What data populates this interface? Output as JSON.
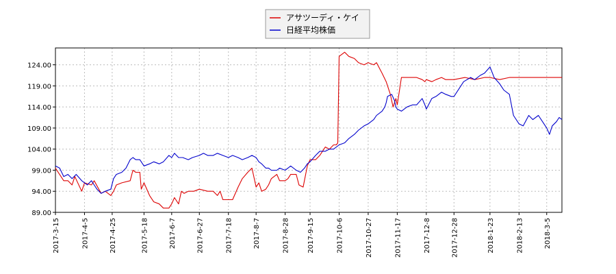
{
  "chart_data": {
    "type": "line",
    "title": "",
    "xlabel": "",
    "ylabel": "",
    "ylim": [
      89,
      128
    ],
    "yticks": [
      89,
      94,
      99,
      104,
      109,
      114,
      119,
      124
    ],
    "ytick_labels": [
      "89.00",
      "94.00",
      "99.00",
      "104.00",
      "109.00",
      "114.00",
      "119.00",
      "124.00"
    ],
    "xlim": [
      "2017-03-15",
      "2018-03-16"
    ],
    "xtick_labels": [
      "2017-3-15",
      "2017-4-5",
      "2017-4-25",
      "2017-5-18",
      "2017-6-7",
      "2017-6-27",
      "2017-7-18",
      "2017-8-7",
      "2017-8-28",
      "2017-9-15",
      "2017-10-6",
      "2017-10-27",
      "2017-11-17",
      "2017-12-8",
      "2017-12-28",
      "2018-1-23",
      "2018-2-13",
      "2018-3-5"
    ],
    "grid": true,
    "legend_position": "top-center",
    "series": [
      {
        "name": "アサツーディ・ケイ",
        "color": "#dd0000",
        "points": [
          [
            "2017-03-15",
            99.5
          ],
          [
            "2017-03-21",
            96.5
          ],
          [
            "2017-03-24",
            96.5
          ],
          [
            "2017-03-27",
            95.5
          ],
          [
            "2017-03-29",
            97.5
          ],
          [
            "2017-04-03",
            94.0
          ],
          [
            "2017-04-05",
            96.0
          ],
          [
            "2017-04-10",
            95.5
          ],
          [
            "2017-04-12",
            96.5
          ],
          [
            "2017-04-17",
            93.5
          ],
          [
            "2017-04-20",
            94.0
          ],
          [
            "2017-04-24",
            93.0
          ],
          [
            "2017-04-26",
            94.0
          ],
          [
            "2017-04-28",
            95.5
          ],
          [
            "2017-05-02",
            96.0
          ],
          [
            "2017-05-08",
            96.5
          ],
          [
            "2017-05-10",
            99.0
          ],
          [
            "2017-05-12",
            98.5
          ],
          [
            "2017-05-15",
            98.5
          ],
          [
            "2017-05-16",
            94.5
          ],
          [
            "2017-05-18",
            96.0
          ],
          [
            "2017-05-22",
            93.0
          ],
          [
            "2017-05-25",
            91.5
          ],
          [
            "2017-05-29",
            91.0
          ],
          [
            "2017-06-01",
            90.0
          ],
          [
            "2017-06-05",
            90.0
          ],
          [
            "2017-06-07",
            91.0
          ],
          [
            "2017-06-09",
            92.5
          ],
          [
            "2017-06-12",
            91.0
          ],
          [
            "2017-06-14",
            94.0
          ],
          [
            "2017-06-16",
            93.5
          ],
          [
            "2017-06-19",
            94.0
          ],
          [
            "2017-06-23",
            94.0
          ],
          [
            "2017-06-27",
            94.5
          ],
          [
            "2017-07-03",
            94.0
          ],
          [
            "2017-07-07",
            94.0
          ],
          [
            "2017-07-10",
            93.0
          ],
          [
            "2017-07-12",
            94.0
          ],
          [
            "2017-07-14",
            92.0
          ],
          [
            "2017-07-18",
            92.0
          ],
          [
            "2017-07-21",
            92.0
          ],
          [
            "2017-07-25",
            95.0
          ],
          [
            "2017-07-28",
            97.0
          ],
          [
            "2017-08-01",
            98.5
          ],
          [
            "2017-08-04",
            99.5
          ],
          [
            "2017-08-07",
            95.0
          ],
          [
            "2017-08-09",
            96.0
          ],
          [
            "2017-08-11",
            94.0
          ],
          [
            "2017-08-14",
            94.5
          ],
          [
            "2017-08-16",
            95.5
          ],
          [
            "2017-08-18",
            97.0
          ],
          [
            "2017-08-22",
            98.0
          ],
          [
            "2017-08-24",
            96.5
          ],
          [
            "2017-08-28",
            96.5
          ],
          [
            "2017-08-30",
            97.0
          ],
          [
            "2017-09-01",
            98.0
          ],
          [
            "2017-09-05",
            98.0
          ],
          [
            "2017-09-07",
            95.5
          ],
          [
            "2017-09-10",
            95.0
          ],
          [
            "2017-09-13",
            100.0
          ],
          [
            "2017-09-15",
            101.5
          ],
          [
            "2017-09-19",
            101.5
          ],
          [
            "2017-09-22",
            102.5
          ],
          [
            "2017-09-26",
            104.5
          ],
          [
            "2017-09-29",
            104.0
          ],
          [
            "2017-10-02",
            105.0
          ],
          [
            "2017-10-04",
            105.0
          ],
          [
            "2017-10-05",
            105.5
          ],
          [
            "2017-10-06",
            126.0
          ],
          [
            "2017-10-10",
            127.0
          ],
          [
            "2017-10-13",
            126.0
          ],
          [
            "2017-10-17",
            125.5
          ],
          [
            "2017-10-20",
            124.5
          ],
          [
            "2017-10-24",
            124.0
          ],
          [
            "2017-10-27",
            124.5
          ],
          [
            "2017-10-31",
            124.0
          ],
          [
            "2017-11-02",
            124.5
          ],
          [
            "2017-11-06",
            122.0
          ],
          [
            "2017-11-09",
            120.0
          ],
          [
            "2017-11-12",
            117.0
          ],
          [
            "2017-11-14",
            114.0
          ],
          [
            "2017-11-16",
            116.0
          ],
          [
            "2017-11-17",
            114.5
          ],
          [
            "2017-11-20",
            121.0
          ],
          [
            "2017-11-24",
            121.0
          ],
          [
            "2017-11-28",
            121.0
          ],
          [
            "2017-12-01",
            121.0
          ],
          [
            "2017-12-05",
            120.5
          ],
          [
            "2017-12-07",
            120.0
          ],
          [
            "2017-12-08",
            120.5
          ],
          [
            "2017-12-12",
            120.0
          ],
          [
            "2017-12-15",
            120.5
          ],
          [
            "2017-12-19",
            121.0
          ],
          [
            "2017-12-22",
            120.5
          ],
          [
            "2017-12-26",
            120.5
          ],
          [
            "2017-12-28",
            120.5
          ],
          [
            "2018-01-05",
            121.0
          ],
          [
            "2018-01-12",
            120.5
          ],
          [
            "2018-01-19",
            121.0
          ],
          [
            "2018-01-23",
            121.0
          ],
          [
            "2018-01-30",
            120.5
          ],
          [
            "2018-02-06",
            121.0
          ],
          [
            "2018-02-13",
            121.0
          ],
          [
            "2018-02-20",
            121.0
          ],
          [
            "2018-02-27",
            121.0
          ],
          [
            "2018-03-05",
            121.0
          ],
          [
            "2018-03-09",
            121.0
          ],
          [
            "2018-03-16",
            121.0
          ]
        ]
      },
      {
        "name": "日経平均株価",
        "color": "#0000cc",
        "points": [
          [
            "2017-03-15",
            100.0
          ],
          [
            "2017-03-18",
            99.5
          ],
          [
            "2017-03-21",
            97.5
          ],
          [
            "2017-03-24",
            98.0
          ],
          [
            "2017-03-27",
            97.0
          ],
          [
            "2017-03-30",
            98.0
          ],
          [
            "2017-04-03",
            96.5
          ],
          [
            "2017-04-05",
            96.0
          ],
          [
            "2017-04-07",
            95.5
          ],
          [
            "2017-04-10",
            96.5
          ],
          [
            "2017-04-12",
            95.5
          ],
          [
            "2017-04-14",
            94.5
          ],
          [
            "2017-04-17",
            93.5
          ],
          [
            "2017-04-20",
            94.0
          ],
          [
            "2017-04-24",
            94.5
          ],
          [
            "2017-04-26",
            97.0
          ],
          [
            "2017-04-28",
            98.0
          ],
          [
            "2017-05-02",
            98.5
          ],
          [
            "2017-05-05",
            99.5
          ],
          [
            "2017-05-08",
            101.5
          ],
          [
            "2017-05-10",
            102.0
          ],
          [
            "2017-05-12",
            101.5
          ],
          [
            "2017-05-15",
            101.5
          ],
          [
            "2017-05-18",
            100.0
          ],
          [
            "2017-05-22",
            100.5
          ],
          [
            "2017-05-25",
            101.0
          ],
          [
            "2017-05-29",
            100.5
          ],
          [
            "2017-06-01",
            101.0
          ],
          [
            "2017-06-05",
            102.5
          ],
          [
            "2017-06-07",
            102.0
          ],
          [
            "2017-06-09",
            103.0
          ],
          [
            "2017-06-12",
            102.0
          ],
          [
            "2017-06-15",
            102.0
          ],
          [
            "2017-06-19",
            101.5
          ],
          [
            "2017-06-22",
            102.0
          ],
          [
            "2017-06-27",
            102.5
          ],
          [
            "2017-06-30",
            103.0
          ],
          [
            "2017-07-03",
            102.5
          ],
          [
            "2017-07-07",
            102.5
          ],
          [
            "2017-07-10",
            103.0
          ],
          [
            "2017-07-14",
            102.5
          ],
          [
            "2017-07-18",
            102.0
          ],
          [
            "2017-07-21",
            102.5
          ],
          [
            "2017-07-25",
            102.0
          ],
          [
            "2017-07-28",
            101.5
          ],
          [
            "2017-08-01",
            102.0
          ],
          [
            "2017-08-04",
            102.5
          ],
          [
            "2017-08-07",
            102.0
          ],
          [
            "2017-08-09",
            101.0
          ],
          [
            "2017-08-11",
            100.5
          ],
          [
            "2017-08-14",
            99.5
          ],
          [
            "2017-08-16",
            99.5
          ],
          [
            "2017-08-18",
            99.0
          ],
          [
            "2017-08-22",
            99.0
          ],
          [
            "2017-08-24",
            99.5
          ],
          [
            "2017-08-28",
            99.0
          ],
          [
            "2017-08-30",
            99.5
          ],
          [
            "2017-09-01",
            100.0
          ],
          [
            "2017-09-05",
            99.0
          ],
          [
            "2017-09-08",
            98.5
          ],
          [
            "2017-09-11",
            99.5
          ],
          [
            "2017-09-13",
            100.5
          ],
          [
            "2017-09-15",
            101.0
          ],
          [
            "2017-09-19",
            102.5
          ],
          [
            "2017-09-22",
            103.5
          ],
          [
            "2017-09-26",
            103.5
          ],
          [
            "2017-09-29",
            104.0
          ],
          [
            "2017-10-02",
            104.0
          ],
          [
            "2017-10-06",
            105.0
          ],
          [
            "2017-10-10",
            105.5
          ],
          [
            "2017-10-13",
            106.5
          ],
          [
            "2017-10-17",
            107.5
          ],
          [
            "2017-10-20",
            108.5
          ],
          [
            "2017-10-24",
            109.5
          ],
          [
            "2017-10-27",
            110.0
          ],
          [
            "2017-10-31",
            111.0
          ],
          [
            "2017-11-02",
            112.0
          ],
          [
            "2017-11-06",
            113.0
          ],
          [
            "2017-11-08",
            114.0
          ],
          [
            "2017-11-09",
            115.0
          ],
          [
            "2017-11-10",
            116.5
          ],
          [
            "2017-11-13",
            117.0
          ],
          [
            "2017-11-15",
            115.5
          ],
          [
            "2017-11-16",
            114.0
          ],
          [
            "2017-11-17",
            113.5
          ],
          [
            "2017-11-20",
            113.0
          ],
          [
            "2017-11-24",
            114.0
          ],
          [
            "2017-11-28",
            114.5
          ],
          [
            "2017-12-01",
            114.5
          ],
          [
            "2017-12-05",
            116.0
          ],
          [
            "2017-12-07",
            114.5
          ],
          [
            "2017-12-08",
            113.5
          ],
          [
            "2017-12-12",
            116.0
          ],
          [
            "2017-12-15",
            116.5
          ],
          [
            "2017-12-19",
            117.5
          ],
          [
            "2017-12-22",
            117.0
          ],
          [
            "2017-12-26",
            116.5
          ],
          [
            "2017-12-28",
            116.5
          ],
          [
            "2018-01-04",
            120.0
          ],
          [
            "2018-01-09",
            121.0
          ],
          [
            "2018-01-12",
            120.5
          ],
          [
            "2018-01-16",
            121.5
          ],
          [
            "2018-01-19",
            122.0
          ],
          [
            "2018-01-23",
            123.5
          ],
          [
            "2018-01-26",
            121.0
          ],
          [
            "2018-01-30",
            119.5
          ],
          [
            "2018-02-02",
            118.0
          ],
          [
            "2018-02-06",
            117.0
          ],
          [
            "2018-02-09",
            112.0
          ],
          [
            "2018-02-13",
            110.0
          ],
          [
            "2018-02-16",
            109.5
          ],
          [
            "2018-02-20",
            112.0
          ],
          [
            "2018-02-23",
            111.0
          ],
          [
            "2018-02-27",
            112.0
          ],
          [
            "2018-03-02",
            110.5
          ],
          [
            "2018-03-05",
            109.0
          ],
          [
            "2018-03-07",
            107.5
          ],
          [
            "2018-03-09",
            109.5
          ],
          [
            "2018-03-12",
            110.5
          ],
          [
            "2018-03-14",
            111.5
          ],
          [
            "2018-03-16",
            111.0
          ]
        ]
      }
    ]
  }
}
